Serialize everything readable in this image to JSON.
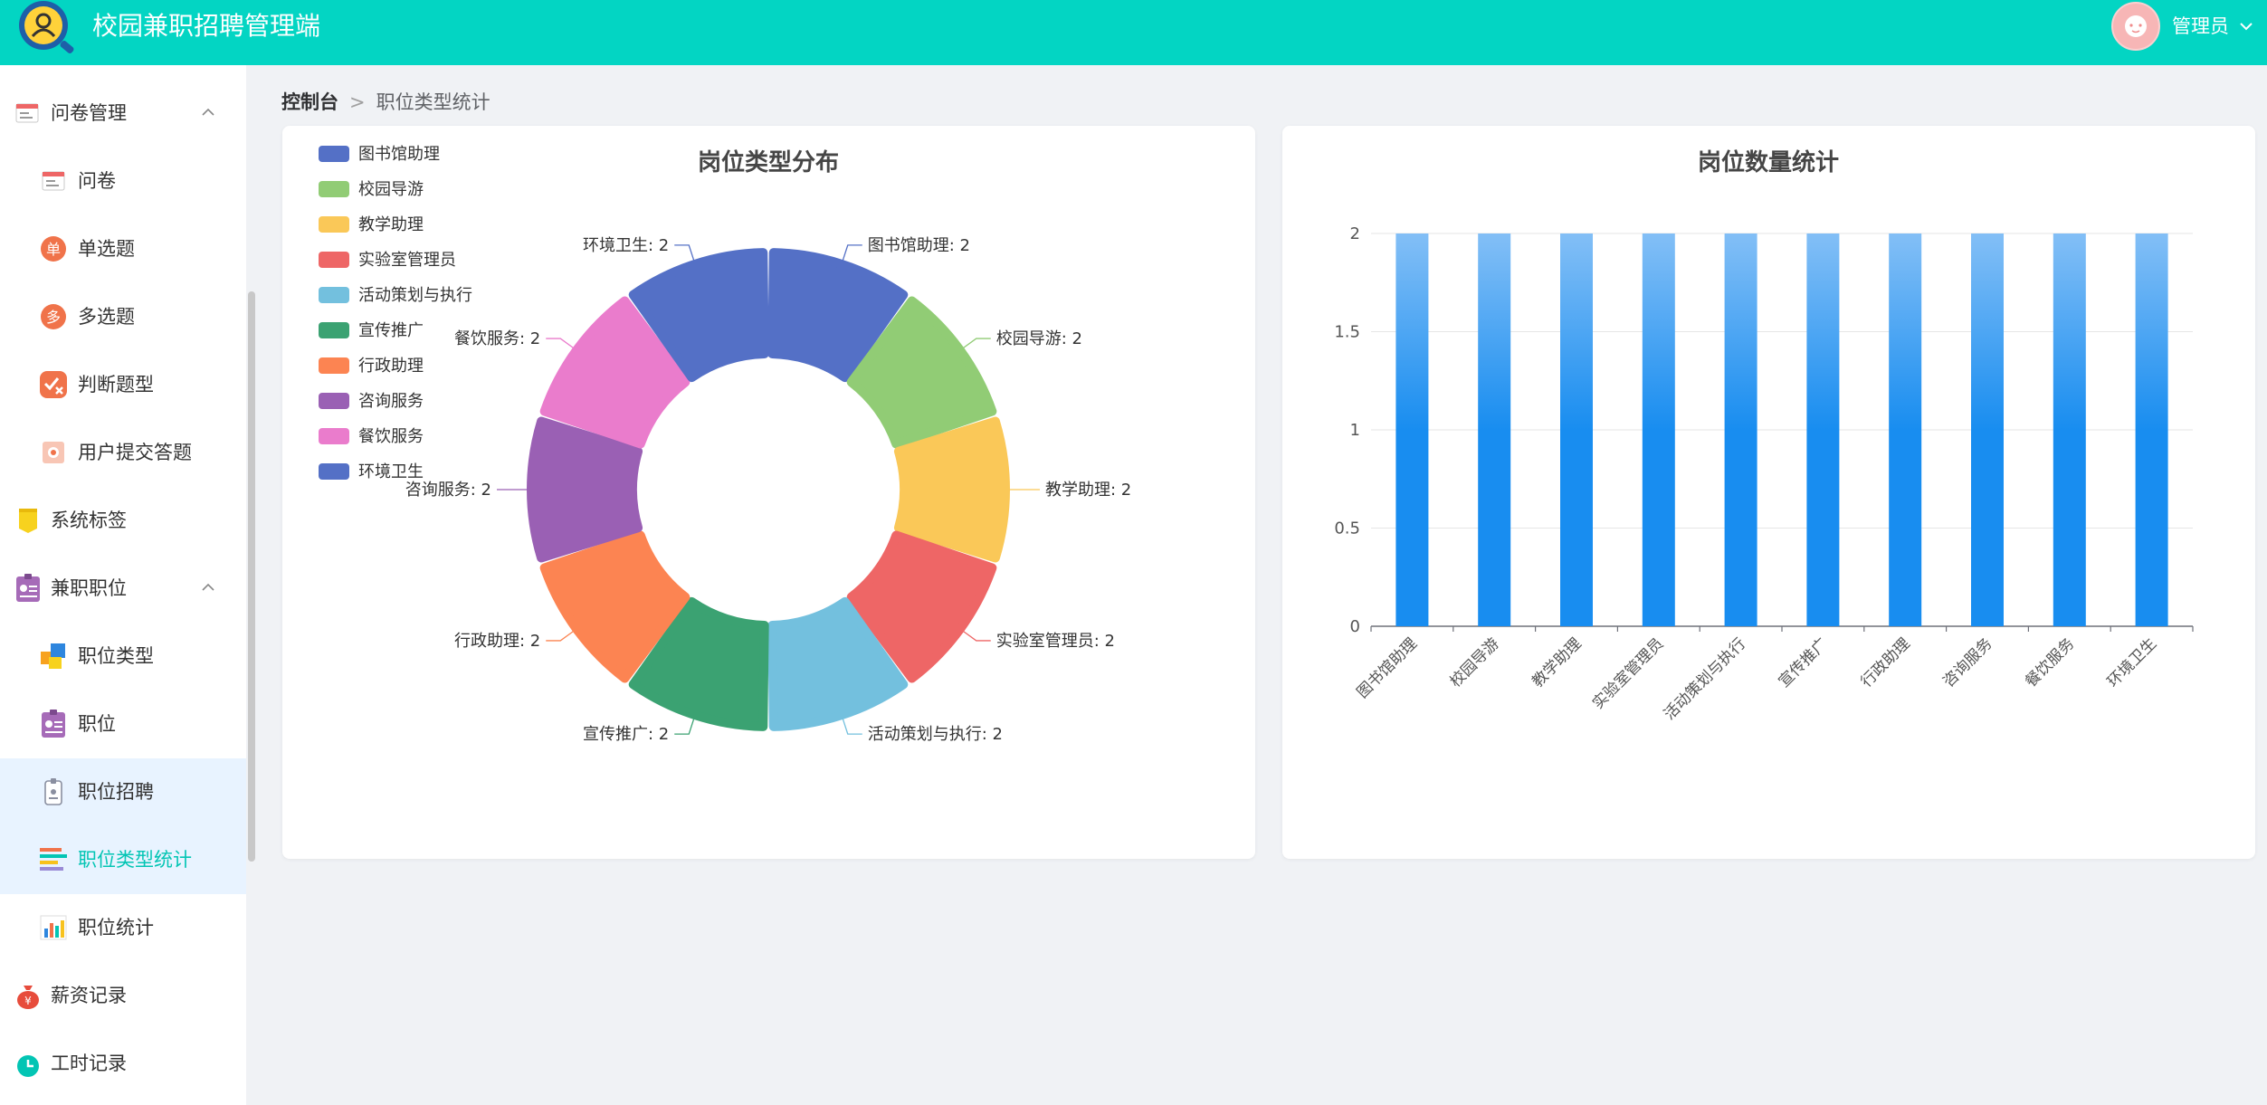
{
  "header": {
    "app_title": "校园兼职招聘管理端",
    "user_name": "管理员",
    "colors": {
      "brand": "#03d5c3"
    }
  },
  "sidebar": {
    "items": [
      {
        "label": "问卷管理",
        "icon": "survey-icon",
        "level": "top",
        "expanded": true
      },
      {
        "label": "问卷",
        "icon": "questionnaire-icon",
        "level": "sub"
      },
      {
        "label": "单选题",
        "icon": "single-choice-icon",
        "level": "sub",
        "badge": "单"
      },
      {
        "label": "多选题",
        "icon": "multi-choice-icon",
        "level": "sub",
        "badge": "多"
      },
      {
        "label": "判断题型",
        "icon": "true-false-icon",
        "level": "sub"
      },
      {
        "label": "用户提交答题",
        "icon": "submission-icon",
        "level": "sub"
      },
      {
        "label": "系统标签",
        "icon": "tag-icon",
        "level": "top"
      },
      {
        "label": "兼职职位",
        "icon": "badge-icon",
        "level": "top",
        "expanded": true
      },
      {
        "label": "职位类型",
        "icon": "category-icon",
        "level": "sub"
      },
      {
        "label": "职位",
        "icon": "position-icon",
        "level": "sub"
      },
      {
        "label": "职位招聘",
        "icon": "recruit-icon",
        "level": "sub"
      },
      {
        "label": "职位类型统计",
        "icon": "stats-bars-icon",
        "level": "sub",
        "active": true
      },
      {
        "label": "职位统计",
        "icon": "chart-icon",
        "level": "sub"
      },
      {
        "label": "薪资记录",
        "icon": "money-bag-icon",
        "level": "top"
      },
      {
        "label": "工时记录",
        "icon": "clock-icon",
        "level": "top"
      }
    ]
  },
  "breadcrumb": {
    "home": "控制台",
    "current": "职位类型统计"
  },
  "chart_data": [
    {
      "type": "pie",
      "title": "岗位类型分布",
      "categories": [
        "图书馆助理",
        "校园导游",
        "教学助理",
        "实验室管理员",
        "活动策划与执行",
        "宣传推广",
        "行政助理",
        "咨询服务",
        "餐饮服务",
        "环境卫生"
      ],
      "values": [
        2,
        2,
        2,
        2,
        2,
        2,
        2,
        2,
        2,
        2
      ],
      "colors": [
        "#5470c6",
        "#91cc75",
        "#fac858",
        "#ee6666",
        "#73c0de",
        "#3ba272",
        "#fc8452",
        "#9a60b4",
        "#ea7ccc",
        "#5470c6"
      ],
      "legend_position": "top-left",
      "donut": true
    },
    {
      "type": "bar",
      "title": "岗位数量统计",
      "categories": [
        "图书馆助理",
        "校园导游",
        "教学助理",
        "实验室管理员",
        "活动策划与执行",
        "宣传推广",
        "行政助理",
        "咨询服务",
        "餐饮服务",
        "环境卫生"
      ],
      "values": [
        2,
        2,
        2,
        2,
        2,
        2,
        2,
        2,
        2,
        2
      ],
      "ylim": [
        0,
        2
      ],
      "yticks": [
        "0",
        "0.5",
        "1",
        "1.5",
        "2"
      ],
      "grid": true,
      "colors": {
        "bar_top": "#83bff6",
        "bar_bottom": "#188df0"
      }
    }
  ]
}
